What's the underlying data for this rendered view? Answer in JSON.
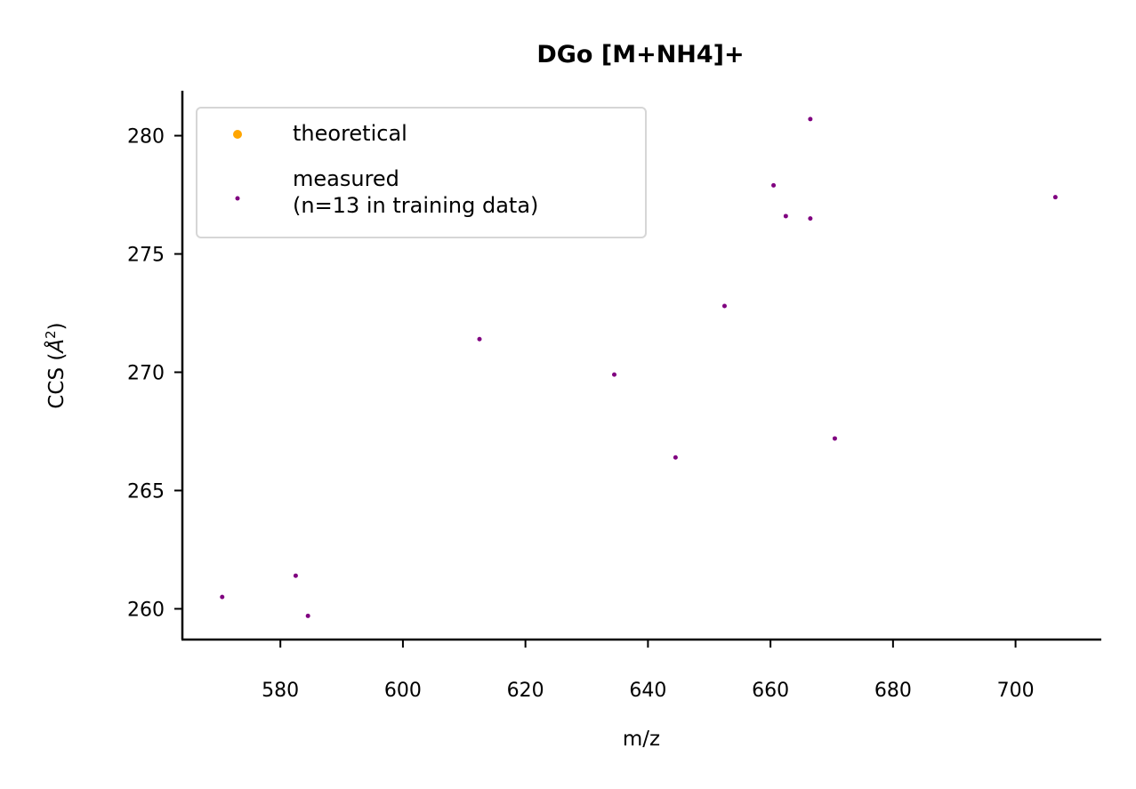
{
  "chart_data": {
    "type": "scatter",
    "title": "DGo [M+NH4]+",
    "xlabel": "m/z",
    "ylabel": {
      "prefix": "CCS (",
      "italic": "Å",
      "sup": "2",
      "suffix": ")"
    },
    "xlim": [
      564,
      714
    ],
    "ylim": [
      258.7,
      281.9
    ],
    "xticks": [
      580,
      600,
      620,
      640,
      660,
      680,
      700
    ],
    "yticks": [
      260,
      265,
      270,
      275,
      280
    ],
    "grid": false,
    "legend_position": "top-left",
    "series": [
      {
        "name": "theoretical",
        "color": "#ffa500",
        "points": []
      },
      {
        "name": "measured\n(n=13 in training data)",
        "color": "#800080",
        "points": [
          {
            "x": 570.5,
            "y": 260.5
          },
          {
            "x": 582.5,
            "y": 261.4
          },
          {
            "x": 584.5,
            "y": 259.7
          },
          {
            "x": 612.5,
            "y": 271.4
          },
          {
            "x": 634.5,
            "y": 269.9
          },
          {
            "x": 644.5,
            "y": 266.4
          },
          {
            "x": 652.5,
            "y": 272.8
          },
          {
            "x": 660.5,
            "y": 277.9
          },
          {
            "x": 662.5,
            "y": 276.6
          },
          {
            "x": 666.5,
            "y": 276.5
          },
          {
            "x": 666.5,
            "y": 280.7
          },
          {
            "x": 670.5,
            "y": 267.2
          },
          {
            "x": 706.5,
            "y": 277.4
          }
        ]
      }
    ]
  }
}
